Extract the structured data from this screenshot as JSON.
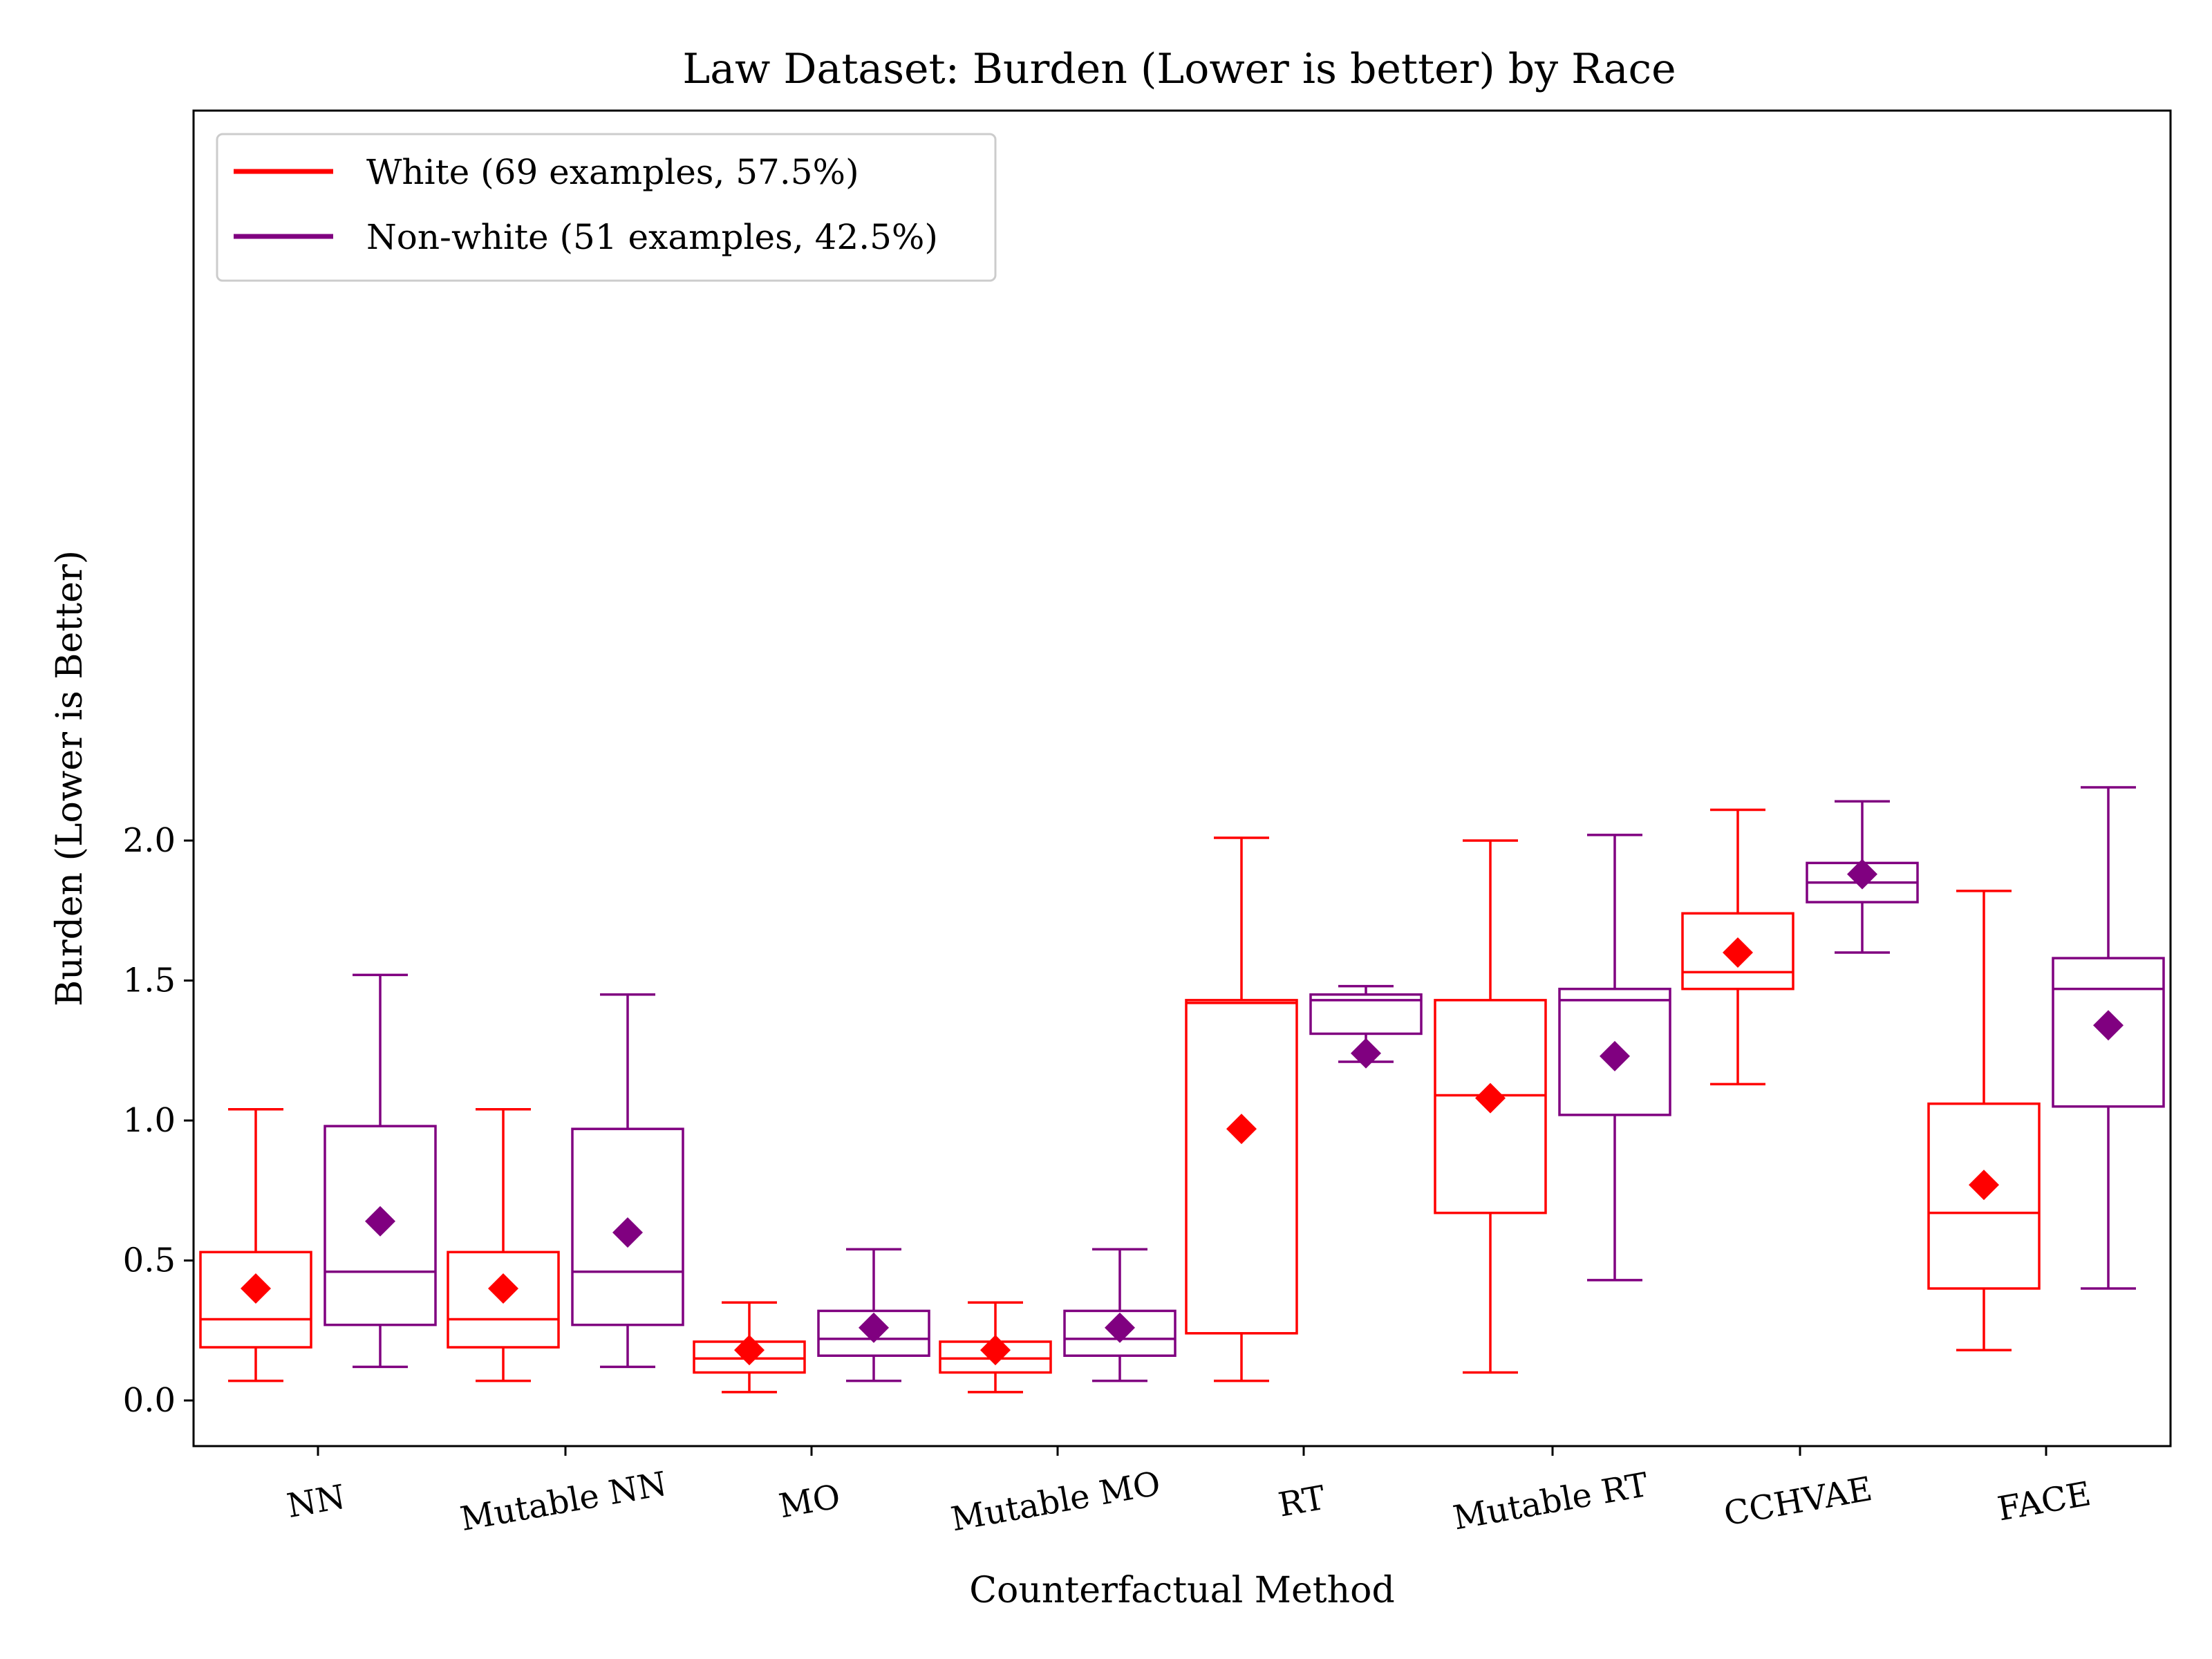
{
  "chart_data": {
    "type": "box",
    "title": "Law Dataset: Burden (Lower is better) by Race",
    "xlabel": "Counterfactual Method",
    "ylabel": "Burden (Lower is Better)",
    "ylim": [
      -0.08,
      2.3
    ],
    "yticks": [
      "0.0",
      "0.5",
      "1.0",
      "1.5",
      "2.0"
    ],
    "categories": [
      "NN",
      "Mutable NN",
      "MO",
      "Mutable MO",
      "RT",
      "Mutable RT",
      "CCHVAE",
      "FACE"
    ],
    "legend_position": "upper-left",
    "series": [
      {
        "name": "White (69 examples, 57.5%)",
        "color": "#ff0000",
        "boxes": [
          {
            "whisker_low": 0.07,
            "q1": 0.19,
            "median": 0.29,
            "q3": 0.53,
            "whisker_high": 1.04,
            "mean": 0.4
          },
          {
            "whisker_low": 0.07,
            "q1": 0.19,
            "median": 0.29,
            "q3": 0.53,
            "whisker_high": 1.04,
            "mean": 0.4
          },
          {
            "whisker_low": 0.03,
            "q1": 0.1,
            "median": 0.15,
            "q3": 0.21,
            "whisker_high": 0.35,
            "mean": 0.18
          },
          {
            "whisker_low": 0.03,
            "q1": 0.1,
            "median": 0.15,
            "q3": 0.21,
            "whisker_high": 0.35,
            "mean": 0.18
          },
          {
            "whisker_low": 0.07,
            "q1": 0.24,
            "median": 1.42,
            "q3": 1.43,
            "whisker_high": 2.01,
            "mean": 0.97
          },
          {
            "whisker_low": 0.1,
            "q1": 0.67,
            "median": 1.09,
            "q3": 1.43,
            "whisker_high": 2.0,
            "mean": 1.08
          },
          {
            "whisker_low": 1.13,
            "q1": 1.47,
            "median": 1.53,
            "q3": 1.74,
            "whisker_high": 2.11,
            "mean": 1.6
          },
          {
            "whisker_low": 0.18,
            "q1": 0.4,
            "median": 0.67,
            "q3": 1.06,
            "whisker_high": 1.82,
            "mean": 0.77
          }
        ]
      },
      {
        "name": "Non-white (51 examples, 42.5%)",
        "color": "#800080",
        "boxes": [
          {
            "whisker_low": 0.12,
            "q1": 0.27,
            "median": 0.46,
            "q3": 0.98,
            "whisker_high": 1.52,
            "mean": 0.64
          },
          {
            "whisker_low": 0.12,
            "q1": 0.27,
            "median": 0.46,
            "q3": 0.97,
            "whisker_high": 1.45,
            "mean": 0.6
          },
          {
            "whisker_low": 0.07,
            "q1": 0.16,
            "median": 0.22,
            "q3": 0.32,
            "whisker_high": 0.54,
            "mean": 0.26
          },
          {
            "whisker_low": 0.07,
            "q1": 0.16,
            "median": 0.22,
            "q3": 0.32,
            "whisker_high": 0.54,
            "mean": 0.26
          },
          {
            "whisker_low": 1.21,
            "q1": 1.31,
            "median": 1.43,
            "q3": 1.45,
            "whisker_high": 1.48,
            "mean": 1.24
          },
          {
            "whisker_low": 0.43,
            "q1": 1.02,
            "median": 1.43,
            "q3": 1.47,
            "whisker_high": 2.02,
            "mean": 1.23
          },
          {
            "whisker_low": 1.6,
            "q1": 1.78,
            "median": 1.85,
            "q3": 1.92,
            "whisker_high": 2.14,
            "mean": 1.88
          },
          {
            "whisker_low": 0.4,
            "q1": 1.05,
            "median": 1.47,
            "q3": 1.58,
            "whisker_high": 2.19,
            "mean": 1.34
          }
        ]
      }
    ]
  }
}
